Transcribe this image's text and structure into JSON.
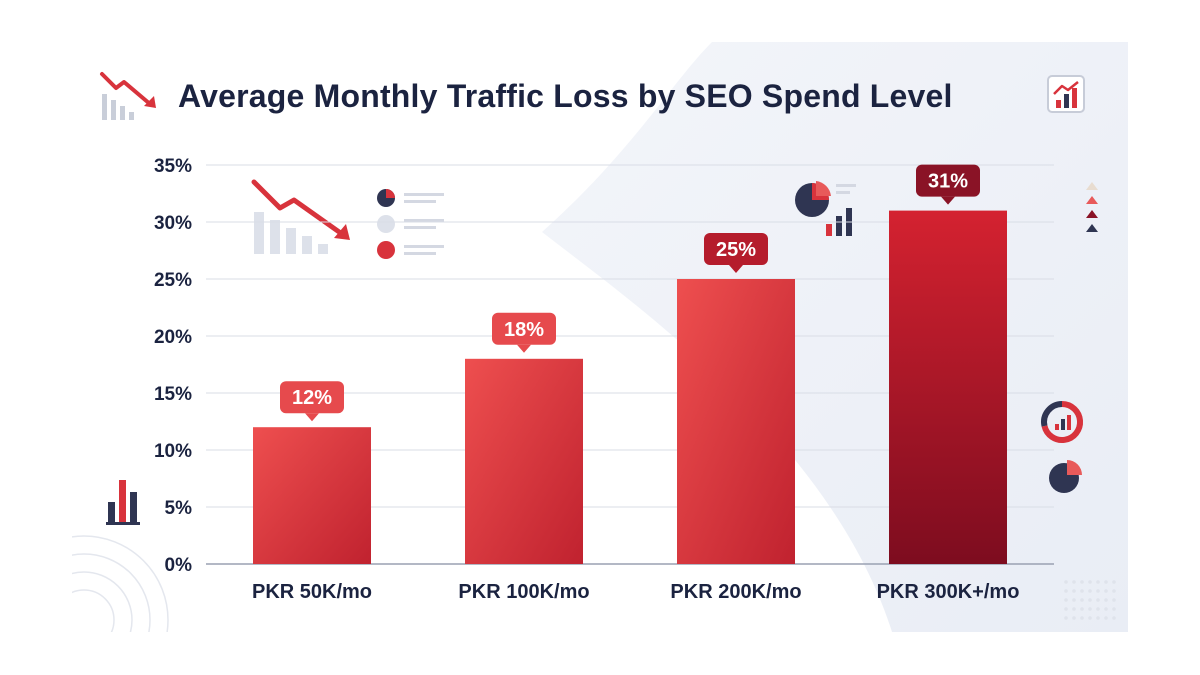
{
  "chart_data": {
    "type": "bar",
    "title": "Average Monthly Traffic Loss by SEO Spend Level",
    "categories": [
      "PKR 50K/mo",
      "PKR 100K/mo",
      "PKR 200K/mo",
      "PKR 300K+/mo"
    ],
    "values": [
      12,
      18,
      25,
      31
    ],
    "value_labels": [
      "12%",
      "18%",
      "25%",
      "31%"
    ],
    "ylim": [
      0,
      35
    ],
    "yticks": [
      0,
      5,
      10,
      15,
      20,
      25,
      30,
      35
    ],
    "ytick_labels": [
      "0%",
      "5%",
      "10%",
      "15%",
      "20%",
      "25%",
      "30%",
      "35%"
    ],
    "xlabel": "",
    "ylabel": "",
    "grid": true,
    "legend": false,
    "colors": {
      "bar_light": "#ec4d4d",
      "bar_dark": "#7d0c1f",
      "label_bg_light": "#e64a4d",
      "label_bg_dark": "#8a1326",
      "text": "#1b2340",
      "grid": "#d9dde6"
    }
  },
  "decorations": {
    "title_icon": "trend-down-chart-icon",
    "corner_icon": "trend-up-chart-icon",
    "left_icons": [
      "bar-chart-icon",
      "concentric-circles-icon"
    ],
    "inner_icons": [
      "trend-down-chart-icon",
      "pie-list-legend-icon",
      "pie-bar-chart-icon"
    ],
    "right_icons": [
      "triangle-markers-icon",
      "donut-chart-icon",
      "pie-chart-icon",
      "dot-grid-icon"
    ]
  }
}
